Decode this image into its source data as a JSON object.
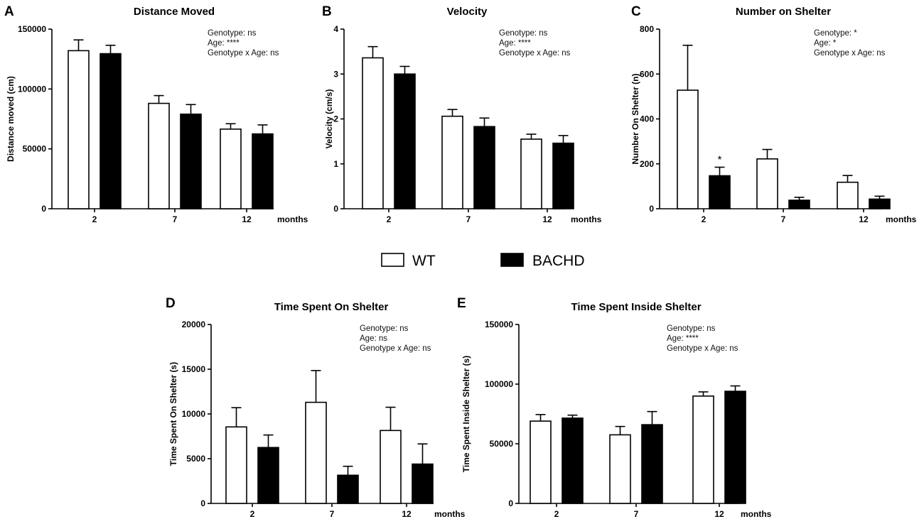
{
  "legend": {
    "items": [
      {
        "label": "WT",
        "color": "#ffffff"
      },
      {
        "label": "BACHD",
        "color": "#000000"
      }
    ]
  },
  "chart_data": [
    {
      "panel": "A",
      "type": "bar",
      "title": "Distance Moved",
      "xlabel": "months",
      "ylabel": "Distance moved (cm)",
      "ylim": [
        0,
        150000
      ],
      "yticks": [
        "0",
        "50000",
        "100000",
        "150000"
      ],
      "ytick_values": [
        0,
        50000,
        100000,
        150000
      ],
      "categories": [
        "2",
        "7",
        "12"
      ],
      "series": [
        {
          "name": "WT",
          "color": "#ffffff",
          "values": [
            132000,
            88000,
            66500
          ],
          "errors": [
            9000,
            6500,
            4500
          ]
        },
        {
          "name": "BACHD",
          "color": "#000000",
          "values": [
            129500,
            79000,
            62500
          ],
          "errors": [
            7000,
            8000,
            7500
          ]
        }
      ],
      "annotations": [
        "Genotype: ns",
        "Age: ****",
        "Genotype x Age: ns"
      ],
      "significance": []
    },
    {
      "panel": "B",
      "type": "bar",
      "title": "Velocity",
      "xlabel": "months",
      "ylabel": "Velocity (cm/s)",
      "ylim": [
        0,
        4
      ],
      "yticks": [
        "0",
        "1",
        "2",
        "3",
        "4"
      ],
      "ytick_values": [
        0,
        1,
        2,
        3,
        4
      ],
      "categories": [
        "2",
        "7",
        "12"
      ],
      "series": [
        {
          "name": "WT",
          "color": "#ffffff",
          "values": [
            3.36,
            2.06,
            1.55
          ],
          "errors": [
            0.25,
            0.15,
            0.11
          ]
        },
        {
          "name": "BACHD",
          "color": "#000000",
          "values": [
            3.0,
            1.83,
            1.46
          ],
          "errors": [
            0.17,
            0.19,
            0.17
          ]
        }
      ],
      "annotations": [
        "Genotype: ns",
        "Age: ****",
        "Genotype x Age: ns"
      ],
      "significance": []
    },
    {
      "panel": "C",
      "type": "bar",
      "title": "Number on Shelter",
      "xlabel": "months",
      "ylabel": "Number On Shelter (n)",
      "ylim": [
        0,
        800
      ],
      "yticks": [
        "0",
        "200",
        "400",
        "600",
        "800"
      ],
      "ytick_values": [
        0,
        200,
        400,
        600,
        800
      ],
      "categories": [
        "2",
        "7",
        "12"
      ],
      "series": [
        {
          "name": "WT",
          "color": "#ffffff",
          "values": [
            528,
            222,
            118
          ],
          "errors": [
            200,
            42,
            30
          ]
        },
        {
          "name": "BACHD",
          "color": "#000000",
          "values": [
            147,
            38,
            43
          ],
          "errors": [
            38,
            13,
            13
          ]
        }
      ],
      "annotations": [
        "Genotype: *",
        "Age: *",
        "Genotype x Age: ns"
      ],
      "significance": [
        {
          "series": "BACHD",
          "category": "2",
          "label": "*"
        }
      ]
    },
    {
      "panel": "D",
      "type": "bar",
      "title": "Time Spent On Shelter",
      "xlabel": "months",
      "ylabel": "Time Spent On Shelter (s)",
      "ylim": [
        0,
        20000
      ],
      "yticks": [
        "0",
        "5000",
        "10000",
        "15000",
        "20000"
      ],
      "ytick_values": [
        0,
        5000,
        10000,
        15000,
        20000
      ],
      "categories": [
        "2",
        "7",
        "12"
      ],
      "series": [
        {
          "name": "WT",
          "color": "#ffffff",
          "values": [
            8550,
            11300,
            8150
          ],
          "errors": [
            2150,
            3550,
            2600
          ]
        },
        {
          "name": "BACHD",
          "color": "#000000",
          "values": [
            6250,
            3150,
            4400
          ],
          "errors": [
            1400,
            1000,
            2250
          ]
        }
      ],
      "annotations": [
        "Genotype: ns",
        "Age: ns",
        "Genotype x Age: ns"
      ],
      "significance": []
    },
    {
      "panel": "E",
      "type": "bar",
      "title": "Time Spent Inside Shelter",
      "xlabel": "months",
      "ylabel": "Time Spent Inside Shelter (s)",
      "ylim": [
        0,
        150000
      ],
      "yticks": [
        "0",
        "50000",
        "100000",
        "150000"
      ],
      "ytick_values": [
        0,
        50000,
        100000,
        150000
      ],
      "categories": [
        "2",
        "7",
        "12"
      ],
      "series": [
        {
          "name": "WT",
          "color": "#ffffff",
          "values": [
            69000,
            57500,
            90000
          ],
          "errors": [
            5500,
            7000,
            3500
          ]
        },
        {
          "name": "BACHD",
          "color": "#000000",
          "values": [
            71500,
            66000,
            94000
          ],
          "errors": [
            2500,
            11000,
            4500
          ]
        }
      ],
      "annotations": [
        "Genotype: ns",
        "Age: ****",
        "Genotype x Age: ns"
      ],
      "significance": []
    }
  ]
}
